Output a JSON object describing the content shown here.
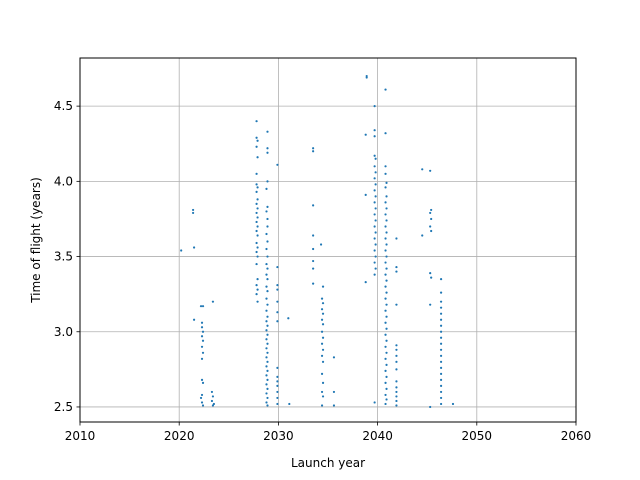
{
  "chart_data": {
    "type": "scatter",
    "title": "",
    "xlabel": "Launch year",
    "ylabel": "Time of flight (years)",
    "xlim": [
      2010,
      2060
    ],
    "ylim": [
      2.4,
      4.82
    ],
    "grid": true,
    "xticks": [
      2010,
      2020,
      2030,
      2040,
      2050,
      2060
    ],
    "xtick_labels": [
      "2010",
      "2020",
      "2030",
      "2040",
      "2050",
      "2060"
    ],
    "yticks": [
      2.5,
      3.0,
      3.5,
      4.0,
      4.5
    ],
    "ytick_labels": [
      "2.5",
      "3.0",
      "3.5",
      "4.0",
      "4.5"
    ],
    "marker_color": "#1f77b4",
    "points": [
      [
        2020.2,
        3.54
      ],
      [
        2021.4,
        3.81
      ],
      [
        2021.4,
        3.79
      ],
      [
        2021.5,
        3.56
      ],
      [
        2021.5,
        3.08
      ],
      [
        2022.2,
        3.17
      ],
      [
        2022.3,
        3.06
      ],
      [
        2022.3,
        3.03
      ],
      [
        2022.4,
        3.0
      ],
      [
        2022.3,
        2.97
      ],
      [
        2022.4,
        2.94
      ],
      [
        2022.3,
        2.9
      ],
      [
        2022.4,
        2.86
      ],
      [
        2022.3,
        2.82
      ],
      [
        2022.4,
        3.17
      ],
      [
        2022.3,
        2.68
      ],
      [
        2022.4,
        2.66
      ],
      [
        2022.3,
        2.58
      ],
      [
        2022.2,
        2.56
      ],
      [
        2022.3,
        2.53
      ],
      [
        2022.4,
        2.51
      ],
      [
        2023.4,
        3.2
      ],
      [
        2023.3,
        2.6
      ],
      [
        2023.4,
        2.57
      ],
      [
        2023.3,
        2.54
      ],
      [
        2023.5,
        2.52
      ],
      [
        2023.4,
        2.51
      ],
      [
        2027.8,
        4.4
      ],
      [
        2027.8,
        4.29
      ],
      [
        2027.9,
        4.27
      ],
      [
        2027.8,
        4.23
      ],
      [
        2027.9,
        4.16
      ],
      [
        2027.8,
        4.05
      ],
      [
        2027.8,
        3.98
      ],
      [
        2027.9,
        3.96
      ],
      [
        2027.8,
        3.93
      ],
      [
        2027.9,
        3.88
      ],
      [
        2027.8,
        3.85
      ],
      [
        2027.9,
        3.82
      ],
      [
        2027.8,
        3.79
      ],
      [
        2027.9,
        3.76
      ],
      [
        2027.8,
        3.73
      ],
      [
        2027.9,
        3.7
      ],
      [
        2027.8,
        3.67
      ],
      [
        2027.9,
        3.64
      ],
      [
        2027.8,
        3.59
      ],
      [
        2027.9,
        3.56
      ],
      [
        2027.8,
        3.53
      ],
      [
        2027.9,
        3.5
      ],
      [
        2027.8,
        3.45
      ],
      [
        2027.9,
        3.35
      ],
      [
        2027.8,
        3.31
      ],
      [
        2027.9,
        3.28
      ],
      [
        2027.8,
        3.25
      ],
      [
        2027.9,
        3.2
      ],
      [
        2028.9,
        4.33
      ],
      [
        2028.9,
        4.22
      ],
      [
        2028.9,
        4.19
      ],
      [
        2028.9,
        4.0
      ],
      [
        2028.8,
        3.95
      ],
      [
        2028.9,
        3.83
      ],
      [
        2028.8,
        3.8
      ],
      [
        2028.9,
        3.75
      ],
      [
        2028.9,
        3.7
      ],
      [
        2028.8,
        3.65
      ],
      [
        2028.9,
        3.6
      ],
      [
        2028.8,
        3.55
      ],
      [
        2028.9,
        3.5
      ],
      [
        2028.8,
        3.45
      ],
      [
        2028.9,
        3.42
      ],
      [
        2028.8,
        3.38
      ],
      [
        2028.9,
        3.35
      ],
      [
        2028.8,
        3.3
      ],
      [
        2028.9,
        3.27
      ],
      [
        2028.8,
        3.22
      ],
      [
        2028.9,
        3.18
      ],
      [
        2028.8,
        3.14
      ],
      [
        2028.9,
        3.1
      ],
      [
        2028.8,
        3.07
      ],
      [
        2028.9,
        3.04
      ],
      [
        2028.8,
        3.01
      ],
      [
        2028.9,
        2.98
      ],
      [
        2028.8,
        2.95
      ],
      [
        2028.9,
        2.92
      ],
      [
        2028.8,
        2.89
      ],
      [
        2028.9,
        2.86
      ],
      [
        2028.8,
        2.83
      ],
      [
        2028.9,
        2.8
      ],
      [
        2028.8,
        2.77
      ],
      [
        2028.9,
        2.74
      ],
      [
        2028.8,
        2.71
      ],
      [
        2028.9,
        2.68
      ],
      [
        2028.8,
        2.65
      ],
      [
        2028.9,
        2.62
      ],
      [
        2028.8,
        2.59
      ],
      [
        2028.9,
        2.56
      ],
      [
        2028.8,
        2.53
      ],
      [
        2028.9,
        2.51
      ],
      [
        2029.9,
        4.11
      ],
      [
        2029.9,
        3.43
      ],
      [
        2029.9,
        3.31
      ],
      [
        2029.9,
        3.28
      ],
      [
        2029.9,
        3.2
      ],
      [
        2029.9,
        3.13
      ],
      [
        2029.9,
        3.07
      ],
      [
        2029.9,
        2.76
      ],
      [
        2029.9,
        2.7
      ],
      [
        2029.9,
        2.67
      ],
      [
        2029.9,
        2.64
      ],
      [
        2029.9,
        2.6
      ],
      [
        2029.9,
        2.56
      ],
      [
        2029.9,
        2.52
      ],
      [
        2031.0,
        3.09
      ],
      [
        2031.1,
        2.52
      ],
      [
        2033.5,
        4.22
      ],
      [
        2033.5,
        4.2
      ],
      [
        2033.5,
        3.84
      ],
      [
        2033.5,
        3.64
      ],
      [
        2033.5,
        3.55
      ],
      [
        2033.5,
        3.47
      ],
      [
        2033.5,
        3.42
      ],
      [
        2033.5,
        3.32
      ],
      [
        2034.3,
        3.58
      ],
      [
        2034.5,
        3.3
      ],
      [
        2034.4,
        3.22
      ],
      [
        2034.5,
        3.19
      ],
      [
        2034.4,
        3.15
      ],
      [
        2034.5,
        3.12
      ],
      [
        2034.4,
        3.08
      ],
      [
        2034.5,
        3.05
      ],
      [
        2034.4,
        3.0
      ],
      [
        2034.5,
        2.96
      ],
      [
        2034.4,
        2.92
      ],
      [
        2034.5,
        2.88
      ],
      [
        2034.4,
        2.84
      ],
      [
        2034.5,
        2.8
      ],
      [
        2034.4,
        2.72
      ],
      [
        2034.5,
        2.66
      ],
      [
        2034.4,
        2.6
      ],
      [
        2034.5,
        2.57
      ],
      [
        2034.4,
        2.51
      ],
      [
        2035.6,
        2.83
      ],
      [
        2035.6,
        2.6
      ],
      [
        2035.6,
        2.51
      ],
      [
        2038.9,
        4.7
      ],
      [
        2038.9,
        4.69
      ],
      [
        2038.8,
        4.31
      ],
      [
        2038.8,
        3.91
      ],
      [
        2038.8,
        3.33
      ],
      [
        2039.7,
        4.5
      ],
      [
        2039.7,
        4.34
      ],
      [
        2039.7,
        4.3
      ],
      [
        2039.7,
        4.17
      ],
      [
        2039.8,
        4.15
      ],
      [
        2039.7,
        4.1
      ],
      [
        2039.8,
        4.06
      ],
      [
        2039.7,
        4.02
      ],
      [
        2039.8,
        3.98
      ],
      [
        2039.7,
        3.94
      ],
      [
        2039.8,
        3.9
      ],
      [
        2039.7,
        3.86
      ],
      [
        2039.8,
        3.82
      ],
      [
        2039.7,
        3.78
      ],
      [
        2039.8,
        3.74
      ],
      [
        2039.7,
        3.7
      ],
      [
        2039.8,
        3.66
      ],
      [
        2039.7,
        3.62
      ],
      [
        2039.8,
        3.58
      ],
      [
        2039.7,
        3.54
      ],
      [
        2039.8,
        3.5
      ],
      [
        2039.7,
        3.46
      ],
      [
        2039.8,
        3.42
      ],
      [
        2039.7,
        3.38
      ],
      [
        2039.7,
        2.53
      ],
      [
        2040.8,
        4.61
      ],
      [
        2040.8,
        4.32
      ],
      [
        2040.8,
        4.1
      ],
      [
        2040.8,
        4.05
      ],
      [
        2040.9,
        3.99
      ],
      [
        2040.8,
        3.96
      ],
      [
        2040.9,
        3.9
      ],
      [
        2040.8,
        3.86
      ],
      [
        2040.9,
        3.82
      ],
      [
        2040.8,
        3.78
      ],
      [
        2040.9,
        3.74
      ],
      [
        2040.8,
        3.7
      ],
      [
        2040.9,
        3.66
      ],
      [
        2040.8,
        3.62
      ],
      [
        2040.9,
        3.58
      ],
      [
        2040.8,
        3.54
      ],
      [
        2040.9,
        3.5
      ],
      [
        2040.8,
        3.46
      ],
      [
        2040.9,
        3.42
      ],
      [
        2040.8,
        3.38
      ],
      [
        2040.9,
        3.34
      ],
      [
        2040.8,
        3.3
      ],
      [
        2040.9,
        3.26
      ],
      [
        2040.8,
        3.22
      ],
      [
        2040.9,
        3.18
      ],
      [
        2040.8,
        3.14
      ],
      [
        2040.9,
        3.1
      ],
      [
        2040.8,
        3.06
      ],
      [
        2040.9,
        3.02
      ],
      [
        2040.8,
        2.98
      ],
      [
        2040.9,
        2.94
      ],
      [
        2040.8,
        2.9
      ],
      [
        2040.9,
        2.86
      ],
      [
        2040.8,
        2.82
      ],
      [
        2040.9,
        2.78
      ],
      [
        2040.8,
        2.74
      ],
      [
        2040.9,
        2.7
      ],
      [
        2040.8,
        2.66
      ],
      [
        2040.9,
        2.62
      ],
      [
        2040.8,
        2.58
      ],
      [
        2040.9,
        2.55
      ],
      [
        2040.8,
        2.52
      ],
      [
        2041.9,
        3.62
      ],
      [
        2041.9,
        3.43
      ],
      [
        2041.9,
        3.4
      ],
      [
        2041.9,
        3.18
      ],
      [
        2041.9,
        2.91
      ],
      [
        2041.9,
        2.88
      ],
      [
        2041.9,
        2.84
      ],
      [
        2041.9,
        2.8
      ],
      [
        2041.9,
        2.75
      ],
      [
        2041.9,
        2.67
      ],
      [
        2041.9,
        2.63
      ],
      [
        2041.9,
        2.6
      ],
      [
        2041.9,
        2.57
      ],
      [
        2041.9,
        2.54
      ],
      [
        2041.9,
        2.51
      ],
      [
        2044.5,
        4.08
      ],
      [
        2044.5,
        3.64
      ],
      [
        2045.3,
        4.07
      ],
      [
        2045.4,
        3.81
      ],
      [
        2045.3,
        3.79
      ],
      [
        2045.4,
        3.75
      ],
      [
        2045.3,
        3.7
      ],
      [
        2045.4,
        3.67
      ],
      [
        2045.3,
        3.39
      ],
      [
        2045.4,
        3.36
      ],
      [
        2045.3,
        3.18
      ],
      [
        2045.3,
        2.5
      ],
      [
        2046.4,
        3.35
      ],
      [
        2046.4,
        3.26
      ],
      [
        2046.4,
        3.2
      ],
      [
        2046.4,
        3.16
      ],
      [
        2046.4,
        3.12
      ],
      [
        2046.4,
        3.08
      ],
      [
        2046.4,
        3.04
      ],
      [
        2046.4,
        3.0
      ],
      [
        2046.4,
        2.96
      ],
      [
        2046.4,
        2.92
      ],
      [
        2046.4,
        2.88
      ],
      [
        2046.4,
        2.84
      ],
      [
        2046.4,
        2.8
      ],
      [
        2046.4,
        2.76
      ],
      [
        2046.4,
        2.72
      ],
      [
        2046.4,
        2.68
      ],
      [
        2046.4,
        2.64
      ],
      [
        2046.4,
        2.6
      ],
      [
        2046.4,
        2.56
      ],
      [
        2046.4,
        2.52
      ],
      [
        2047.6,
        2.52
      ]
    ]
  }
}
